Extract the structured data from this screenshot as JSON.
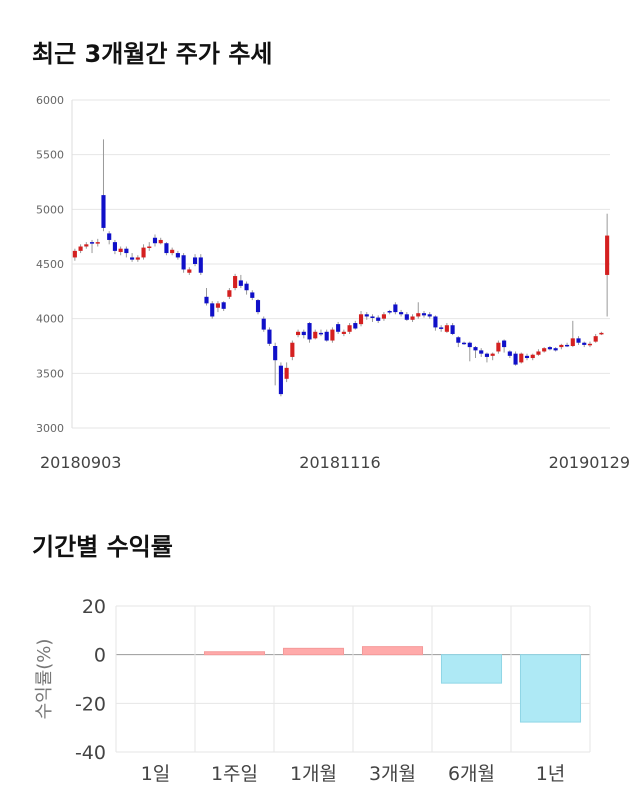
{
  "section1": {
    "title": "최근 3개월간 주가 추세"
  },
  "section2": {
    "title": "기간별 수익률"
  },
  "colors": {
    "up": "#d42020",
    "down": "#1010c8",
    "wick": "#999999",
    "bar_pos": "#ffaaaa",
    "bar_neg": "#aee9f5",
    "grid": "#e6e6e6"
  },
  "chart_data": [
    {
      "type": "candlestick",
      "title": "최근 3개월간 주가 추세",
      "ylim": [
        3000,
        6000
      ],
      "y_ticks": [
        "6000",
        "5500",
        "5000",
        "4500",
        "4000",
        "3500",
        "3000"
      ],
      "x_tick_labels": [
        "20180903",
        "20181116",
        "20190129"
      ],
      "grid": true,
      "candles": [
        [
          4560,
          4620,
          4530,
          4640
        ],
        [
          4620,
          4660,
          4600,
          4680
        ],
        [
          4660,
          4680,
          4640,
          4700
        ],
        [
          4700,
          4690,
          4600,
          4720
        ],
        [
          4690,
          4700,
          4660,
          4730
        ],
        [
          5130,
          4830,
          4800,
          5640
        ],
        [
          4780,
          4720,
          4680,
          4800
        ],
        [
          4700,
          4620,
          4590,
          4720
        ],
        [
          4610,
          4640,
          4580,
          4660
        ],
        [
          4640,
          4600,
          4560,
          4660
        ],
        [
          4560,
          4540,
          4520,
          4600
        ],
        [
          4540,
          4560,
          4520,
          4580
        ],
        [
          4560,
          4650,
          4540,
          4680
        ],
        [
          4650,
          4660,
          4620,
          4700
        ],
        [
          4740,
          4690,
          4660,
          4770
        ],
        [
          4690,
          4720,
          4680,
          4740
        ],
        [
          4690,
          4600,
          4580,
          4700
        ],
        [
          4600,
          4630,
          4580,
          4650
        ],
        [
          4600,
          4560,
          4540,
          4620
        ],
        [
          4580,
          4450,
          4420,
          4600
        ],
        [
          4420,
          4450,
          4400,
          4470
        ],
        [
          4560,
          4500,
          4480,
          4590
        ],
        [
          4560,
          4420,
          4400,
          4590
        ],
        [
          4200,
          4140,
          4120,
          4280
        ],
        [
          4140,
          4020,
          4000,
          4160
        ],
        [
          4100,
          4140,
          4060,
          4160
        ],
        [
          4150,
          4090,
          4070,
          4160
        ],
        [
          4200,
          4260,
          4180,
          4280
        ],
        [
          4280,
          4390,
          4260,
          4410
        ],
        [
          4350,
          4300,
          4280,
          4400
        ],
        [
          4320,
          4260,
          4220,
          4340
        ],
        [
          4240,
          4190,
          4170,
          4260
        ],
        [
          4170,
          4060,
          4040,
          4180
        ],
        [
          4000,
          3900,
          3880,
          4020
        ],
        [
          3900,
          3770,
          3750,
          3920
        ],
        [
          3750,
          3620,
          3390,
          3780
        ],
        [
          3570,
          3310,
          3290,
          3600
        ],
        [
          3450,
          3550,
          3420,
          3600
        ],
        [
          3650,
          3780,
          3620,
          3800
        ],
        [
          3850,
          3880,
          3830,
          3900
        ],
        [
          3880,
          3850,
          3820,
          3900
        ],
        [
          3960,
          3810,
          3780,
          3970
        ],
        [
          3820,
          3880,
          3810,
          3900
        ],
        [
          3870,
          3860,
          3840,
          3900
        ],
        [
          3880,
          3800,
          3790,
          3900
        ],
        [
          3800,
          3900,
          3780,
          3920
        ],
        [
          3950,
          3880,
          3860,
          3970
        ],
        [
          3860,
          3880,
          3840,
          3900
        ],
        [
          3880,
          3940,
          3860,
          3960
        ],
        [
          3960,
          3910,
          3900,
          3980
        ],
        [
          3950,
          4040,
          3930,
          4070
        ],
        [
          4040,
          4020,
          3990,
          4060
        ],
        [
          4020,
          4010,
          3970,
          4040
        ],
        [
          4010,
          3980,
          3960,
          4030
        ],
        [
          4000,
          4040,
          3980,
          4060
        ],
        [
          4070,
          4060,
          4040,
          4080
        ],
        [
          4130,
          4060,
          4040,
          4150
        ],
        [
          4060,
          4040,
          4020,
          4080
        ],
        [
          4040,
          3990,
          3980,
          4060
        ],
        [
          3990,
          4020,
          3970,
          4040
        ],
        [
          4020,
          4050,
          4000,
          4150
        ],
        [
          4050,
          4030,
          4010,
          4070
        ],
        [
          4040,
          4020,
          4000,
          4060
        ],
        [
          4020,
          3920,
          3890,
          4030
        ],
        [
          3920,
          3910,
          3880,
          3940
        ],
        [
          3880,
          3940,
          3870,
          3960
        ],
        [
          3940,
          3860,
          3850,
          3960
        ],
        [
          3830,
          3780,
          3740,
          3840
        ],
        [
          3780,
          3770,
          3760,
          3790
        ],
        [
          3780,
          3740,
          3610,
          3790
        ],
        [
          3740,
          3710,
          3640,
          3750
        ],
        [
          3710,
          3680,
          3650,
          3730
        ],
        [
          3680,
          3650,
          3600,
          3690
        ],
        [
          3660,
          3680,
          3620,
          3690
        ],
        [
          3700,
          3780,
          3680,
          3800
        ],
        [
          3800,
          3740,
          3690,
          3810
        ],
        [
          3700,
          3660,
          3640,
          3710
        ],
        [
          3680,
          3580,
          3570,
          3700
        ],
        [
          3600,
          3680,
          3590,
          3690
        ],
        [
          3660,
          3640,
          3620,
          3680
        ],
        [
          3640,
          3670,
          3620,
          3680
        ],
        [
          3670,
          3700,
          3660,
          3720
        ],
        [
          3700,
          3730,
          3690,
          3740
        ],
        [
          3740,
          3720,
          3710,
          3750
        ],
        [
          3730,
          3710,
          3700,
          3740
        ],
        [
          3740,
          3760,
          3720,
          3770
        ],
        [
          3760,
          3750,
          3740,
          3780
        ],
        [
          3750,
          3820,
          3740,
          3980
        ],
        [
          3820,
          3780,
          3760,
          3840
        ],
        [
          3780,
          3760,
          3740,
          3790
        ],
        [
          3760,
          3770,
          3740,
          3790
        ],
        [
          3790,
          3840,
          3780,
          3860
        ],
        [
          3860,
          3870,
          3850,
          3880
        ],
        [
          4400,
          4760,
          4020,
          4960
        ]
      ]
    },
    {
      "type": "bar",
      "ylabel": "수익률(%)",
      "ylim": [
        -40,
        20
      ],
      "y_ticks": [
        20,
        0,
        -20,
        -40
      ],
      "categories": [
        "1일",
        "1주일",
        "1개월",
        "3개월",
        "6개월",
        "1년"
      ],
      "values": [
        0,
        1.2,
        2.6,
        3.3,
        -11.7,
        -27.7
      ],
      "grid": true
    }
  ]
}
